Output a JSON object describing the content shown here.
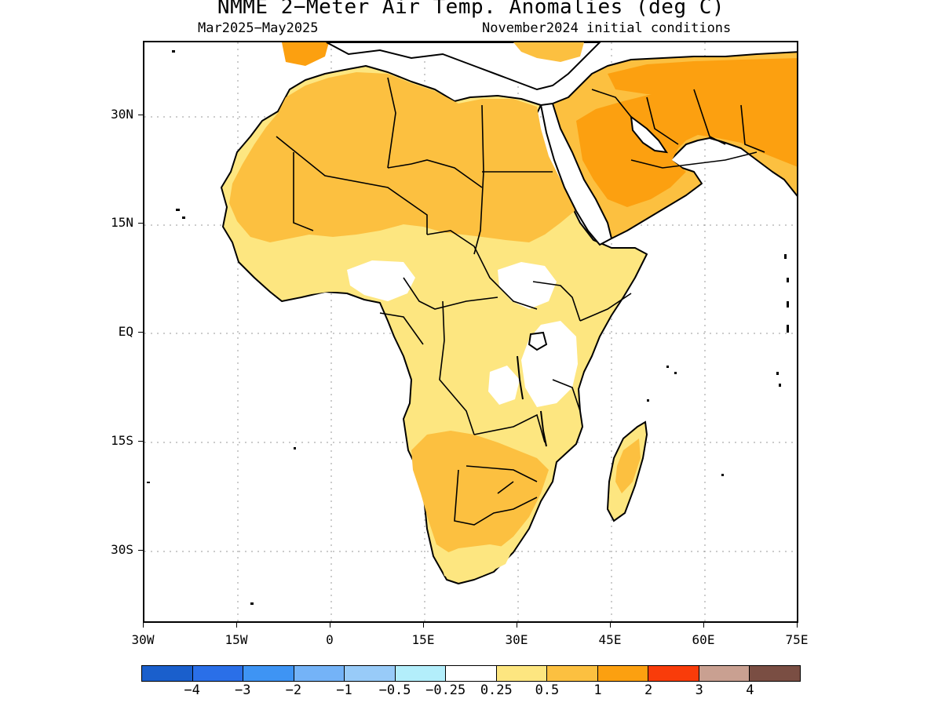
{
  "title": "NMME 2−Meter Air Temp. Anomalies (deg C)",
  "subtitle_left": "Mar2025−May2025",
  "subtitle_right": "November2024 initial conditions",
  "y_axis": {
    "labels": [
      "30N",
      "15N",
      "EQ",
      "15S",
      "30S"
    ],
    "values": [
      30,
      15,
      0,
      -15,
      -30
    ]
  },
  "x_axis": {
    "labels": [
      "30W",
      "15W",
      "0",
      "15E",
      "30E",
      "45E",
      "60E",
      "75E"
    ],
    "values": [
      -30,
      -15,
      0,
      15,
      30,
      45,
      60,
      75
    ]
  },
  "map_extent": {
    "lon": [
      -30,
      75
    ],
    "lat": [
      -40,
      40
    ]
  },
  "colorbar": {
    "colors": [
      "#1a5fcc",
      "#2a6fe8",
      "#3e94f4",
      "#74b3f7",
      "#98cbf8",
      "#b3eefb",
      "#ffffff",
      "#fde680",
      "#fcc040",
      "#fca010",
      "#f93c0a",
      "#c9a091",
      "#7a4e43"
    ],
    "labels": [
      "−4",
      "−3",
      "−2",
      "−1",
      "−0.5",
      "−0.25",
      "0.25",
      "0.5",
      "1",
      "2",
      "3",
      "4"
    ]
  },
  "legend_meaning": {
    "white": "-0.25 to 0.25",
    "light_yellow": "0.25 to 0.5",
    "light_orange": "0.5 to 1",
    "orange": "1 to 2"
  }
}
